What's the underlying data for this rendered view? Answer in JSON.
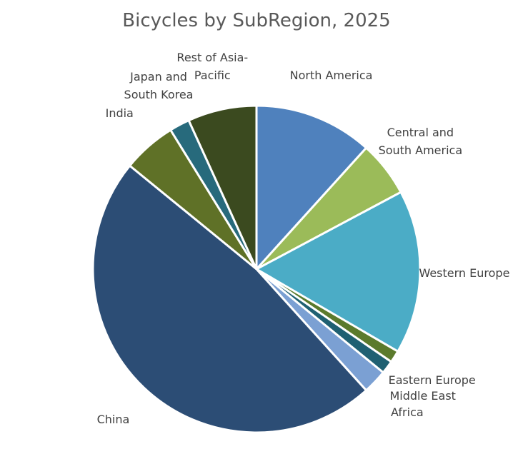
{
  "chart_data": {
    "type": "pie",
    "title": "Bicycles by SubRegion, 2025",
    "categories": [
      "North America",
      "Central and South America",
      "Western Europe",
      "Eastern Europe",
      "Middle East",
      "Africa",
      "China",
      "India",
      "Japan and South Korea",
      "Rest of Asia-Pacific"
    ],
    "values": [
      11.7,
      5.5,
      16.2,
      1.2,
      1.3,
      2.4,
      47.6,
      5.3,
      2.0,
      6.8
    ],
    "colors": [
      "#4f81bd",
      "#9bbb59",
      "#4bacc6",
      "#5b7a2c",
      "#1f6072",
      "#7ba0d3",
      "#2c4d75",
      "#5f7127",
      "#276a7c",
      "#3b4a1f"
    ]
  }
}
